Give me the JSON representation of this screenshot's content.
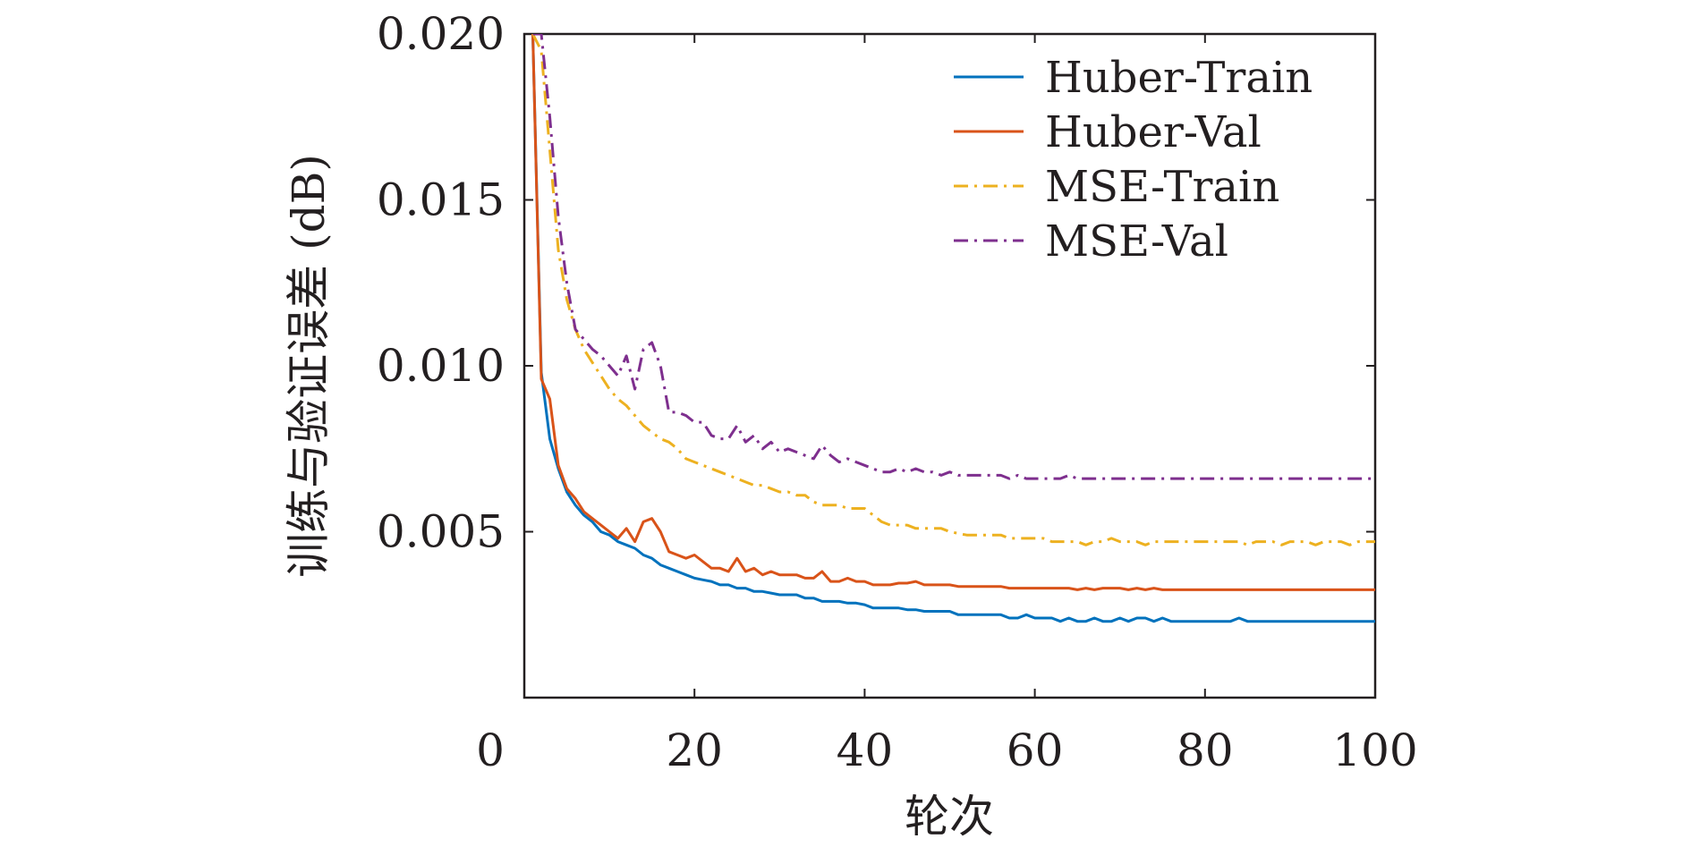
{
  "chart_data": {
    "type": "line",
    "title": "",
    "xlabel": "轮次",
    "ylabel": "训练与验证误差 (dB)",
    "xlim": [
      0,
      100
    ],
    "ylim": [
      0,
      0.02
    ],
    "xticks": [
      {
        "value": 0,
        "label": "0"
      },
      {
        "value": 20,
        "label": "20"
      },
      {
        "value": 40,
        "label": "40"
      },
      {
        "value": 60,
        "label": "60"
      },
      {
        "value": 80,
        "label": "80"
      },
      {
        "value": 100,
        "label": "100"
      }
    ],
    "yticks": [
      {
        "value": 0.005,
        "label": "0.005"
      },
      {
        "value": 0.01,
        "label": "0.010"
      },
      {
        "value": 0.015,
        "label": "0.015"
      },
      {
        "value": 0.02,
        "label": "0.020"
      }
    ],
    "grid": false,
    "legend_position": "top-right",
    "x": [
      1,
      2,
      3,
      4,
      5,
      6,
      7,
      8,
      9,
      10,
      11,
      12,
      13,
      14,
      15,
      16,
      17,
      18,
      19,
      20,
      21,
      22,
      23,
      24,
      25,
      26,
      27,
      28,
      29,
      30,
      31,
      32,
      33,
      34,
      35,
      36,
      37,
      38,
      39,
      40,
      41,
      42,
      43,
      44,
      45,
      46,
      47,
      48,
      49,
      50,
      51,
      52,
      53,
      54,
      55,
      56,
      57,
      58,
      59,
      60,
      61,
      62,
      63,
      64,
      65,
      66,
      67,
      68,
      69,
      70,
      71,
      72,
      73,
      74,
      75,
      76,
      77,
      78,
      79,
      80,
      81,
      82,
      83,
      84,
      85,
      86,
      87,
      88,
      89,
      90,
      91,
      92,
      93,
      94,
      95,
      96,
      97,
      98,
      99,
      100
    ],
    "series": [
      {
        "name": "Huber-Train",
        "color": "#0072bd",
        "dash": "solid",
        "values": [
          0.02,
          0.0098,
          0.0078,
          0.0069,
          0.0062,
          0.0058,
          0.0055,
          0.0053,
          0.005,
          0.0049,
          0.0047,
          0.0046,
          0.0045,
          0.0043,
          0.0042,
          0.004,
          0.0039,
          0.0038,
          0.0037,
          0.0036,
          0.00355,
          0.0035,
          0.0034,
          0.0034,
          0.0033,
          0.0033,
          0.0032,
          0.0032,
          0.00315,
          0.0031,
          0.0031,
          0.0031,
          0.003,
          0.003,
          0.0029,
          0.0029,
          0.0029,
          0.00285,
          0.00285,
          0.0028,
          0.0027,
          0.0027,
          0.0027,
          0.0027,
          0.00265,
          0.00265,
          0.0026,
          0.0026,
          0.0026,
          0.0026,
          0.0025,
          0.0025,
          0.0025,
          0.0025,
          0.0025,
          0.0025,
          0.0024,
          0.0024,
          0.0025,
          0.0024,
          0.0024,
          0.0024,
          0.0023,
          0.0024,
          0.0023,
          0.0023,
          0.0024,
          0.0023,
          0.0023,
          0.0024,
          0.0023,
          0.0024,
          0.0024,
          0.0023,
          0.0024,
          0.0023,
          0.0023,
          0.0023,
          0.0023,
          0.0023,
          0.0023,
          0.0023,
          0.0023,
          0.0024,
          0.0023,
          0.0023,
          0.0023,
          0.0023,
          0.0023,
          0.0023,
          0.0023,
          0.0023,
          0.0023,
          0.0023,
          0.0023,
          0.0023,
          0.0023,
          0.0023,
          0.0023,
          0.0023
        ]
      },
      {
        "name": "Huber-Val",
        "color": "#d95319",
        "dash": "solid",
        "values": [
          0.02,
          0.0096,
          0.009,
          0.007,
          0.0063,
          0.006,
          0.0056,
          0.0054,
          0.0052,
          0.005,
          0.0048,
          0.0051,
          0.0047,
          0.0053,
          0.0054,
          0.005,
          0.0044,
          0.0043,
          0.0042,
          0.0043,
          0.0041,
          0.0039,
          0.0039,
          0.0038,
          0.0042,
          0.0038,
          0.0039,
          0.0037,
          0.0038,
          0.0037,
          0.0037,
          0.0037,
          0.0036,
          0.0036,
          0.0038,
          0.0035,
          0.0035,
          0.0036,
          0.0035,
          0.0035,
          0.0034,
          0.0034,
          0.0034,
          0.00345,
          0.00345,
          0.0035,
          0.0034,
          0.0034,
          0.0034,
          0.0034,
          0.00335,
          0.00335,
          0.00335,
          0.00335,
          0.00335,
          0.00335,
          0.0033,
          0.0033,
          0.0033,
          0.0033,
          0.0033,
          0.0033,
          0.0033,
          0.0033,
          0.00325,
          0.0033,
          0.00325,
          0.0033,
          0.0033,
          0.0033,
          0.00325,
          0.0033,
          0.00325,
          0.0033,
          0.00325,
          0.00325,
          0.00325,
          0.00325,
          0.00325,
          0.00325,
          0.00325,
          0.00325,
          0.00325,
          0.00325,
          0.00325,
          0.00325,
          0.00325,
          0.00325,
          0.00325,
          0.00325,
          0.00325,
          0.00325,
          0.00325,
          0.00325,
          0.00325,
          0.00325,
          0.00325,
          0.00325,
          0.00325,
          0.00325
        ]
      },
      {
        "name": "MSE-Train",
        "color": "#edb120",
        "dash": "dashdot",
        "values": [
          0.02,
          0.0195,
          0.0165,
          0.0135,
          0.012,
          0.0111,
          0.0105,
          0.0101,
          0.0097,
          0.0093,
          0.009,
          0.0088,
          0.0085,
          0.0082,
          0.008,
          0.0078,
          0.0077,
          0.0075,
          0.0072,
          0.0071,
          0.007,
          0.0069,
          0.0068,
          0.0067,
          0.0066,
          0.0065,
          0.0064,
          0.0064,
          0.0063,
          0.0062,
          0.0062,
          0.0061,
          0.0061,
          0.0059,
          0.0058,
          0.0058,
          0.0058,
          0.0057,
          0.0057,
          0.0057,
          0.0055,
          0.0053,
          0.0052,
          0.0052,
          0.0052,
          0.0051,
          0.0051,
          0.0051,
          0.0051,
          0.005,
          0.00495,
          0.0049,
          0.0049,
          0.0049,
          0.0049,
          0.0049,
          0.0048,
          0.0048,
          0.0048,
          0.0048,
          0.0048,
          0.0047,
          0.0047,
          0.0047,
          0.0047,
          0.0046,
          0.0047,
          0.0047,
          0.0048,
          0.0047,
          0.0047,
          0.0047,
          0.0046,
          0.0047,
          0.0047,
          0.0047,
          0.0047,
          0.0047,
          0.0047,
          0.0047,
          0.0047,
          0.0047,
          0.0047,
          0.0047,
          0.0046,
          0.0047,
          0.0047,
          0.0047,
          0.0046,
          0.0047,
          0.0047,
          0.0047,
          0.0046,
          0.0047,
          0.0047,
          0.0047,
          0.0046,
          0.0047,
          0.0047,
          0.0047
        ]
      },
      {
        "name": "MSE-Val",
        "color": "#7e2f8e",
        "dash": "dashdot",
        "values": [
          0.02,
          0.02,
          0.0175,
          0.0145,
          0.0125,
          0.0111,
          0.0108,
          0.0105,
          0.0103,
          0.01,
          0.0097,
          0.0103,
          0.0093,
          0.0105,
          0.0107,
          0.01,
          0.0086,
          0.0086,
          0.0085,
          0.0083,
          0.0083,
          0.0079,
          0.0078,
          0.0078,
          0.0082,
          0.0077,
          0.0079,
          0.0075,
          0.0077,
          0.0074,
          0.0075,
          0.0074,
          0.0073,
          0.0072,
          0.0076,
          0.0073,
          0.0071,
          0.0072,
          0.0071,
          0.007,
          0.0069,
          0.0068,
          0.0068,
          0.0069,
          0.0068,
          0.0069,
          0.0068,
          0.0068,
          0.0067,
          0.0068,
          0.0067,
          0.0067,
          0.0067,
          0.0067,
          0.0067,
          0.0067,
          0.0066,
          0.0067,
          0.0066,
          0.0066,
          0.0066,
          0.0066,
          0.0066,
          0.0067,
          0.0066,
          0.0066,
          0.0066,
          0.0066,
          0.0066,
          0.0066,
          0.0066,
          0.0066,
          0.0066,
          0.0066,
          0.0066,
          0.0066,
          0.0066,
          0.0066,
          0.0066,
          0.0066,
          0.0066,
          0.0066,
          0.0066,
          0.0066,
          0.0066,
          0.0066,
          0.0066,
          0.0066,
          0.0066,
          0.0066,
          0.0066,
          0.0066,
          0.0066,
          0.0066,
          0.0066,
          0.0066,
          0.0066,
          0.0066,
          0.0066,
          0.0066
        ]
      }
    ]
  }
}
